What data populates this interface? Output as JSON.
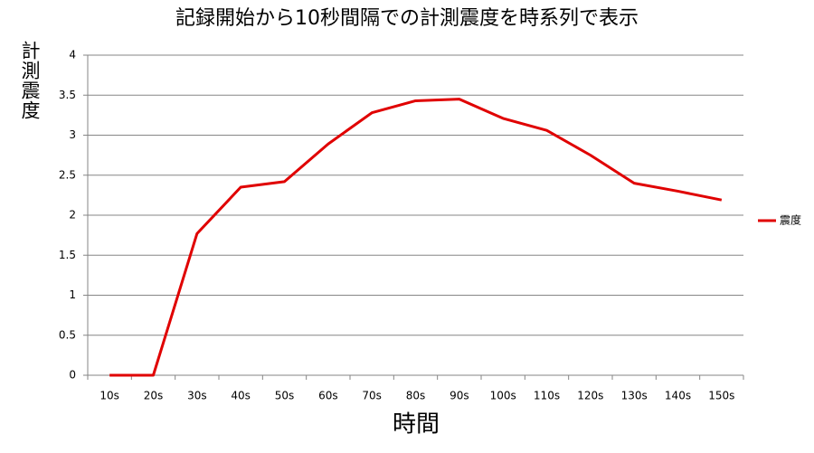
{
  "chart_data": {
    "type": "line",
    "title": "記録開始から10秒間隔での計測震度を時系列で表示",
    "x_label": "時間",
    "y_label": "計測震度",
    "categories": [
      "10s",
      "20s",
      "30s",
      "40s",
      "50s",
      "60s",
      "70s",
      "80s",
      "90s",
      "100s",
      "110s",
      "120s",
      "130s",
      "140s",
      "150s"
    ],
    "series": [
      {
        "name": "震度",
        "color": "#e00000",
        "values": [
          0,
          0,
          1.77,
          2.35,
          2.42,
          2.89,
          3.28,
          3.43,
          3.45,
          3.21,
          3.06,
          2.75,
          2.4,
          2.3,
          2.19
        ]
      }
    ],
    "ylim": [
      0,
      4
    ],
    "yticks": [
      0,
      0.5,
      1,
      1.5,
      2,
      2.5,
      3,
      3.5,
      4
    ],
    "grid": true,
    "legend": "right"
  }
}
